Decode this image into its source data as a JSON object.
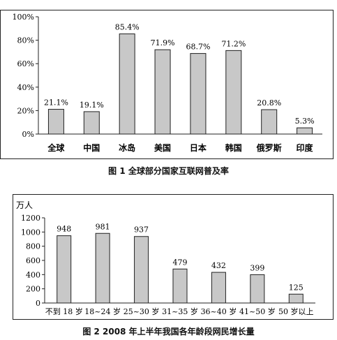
{
  "charts": [
    {
      "caption": "图 1  全球部分国家互联网普及率",
      "chart_data": {
        "type": "bar",
        "categories": [
          "全球",
          "中国",
          "冰岛",
          "美国",
          "日本",
          "韩国",
          "俄罗斯",
          "印度"
        ],
        "values": [
          21.1,
          19.1,
          85.4,
          71.9,
          68.7,
          71.2,
          20.8,
          5.3
        ],
        "value_labels": [
          "21.1%",
          "19.1%",
          "85.4%",
          "71.9%",
          "68.7%",
          "71.2%",
          "20.8%",
          "5.3%"
        ],
        "y_ticks": [
          "0%",
          "20%",
          "40%",
          "60%",
          "80%",
          "100%"
        ],
        "ylim": [
          0,
          100
        ],
        "ylabel": "",
        "bar_color": "#c8c8c8"
      }
    },
    {
      "caption": "图 2  2008 年上半年我国各年龄段网民增长量",
      "chart_data": {
        "type": "bar",
        "categories": [
          "不到 18 岁",
          "18~24 岁",
          "25~30 岁",
          "31~35 岁",
          "36~40 岁",
          "41~50 岁",
          "50 岁以上"
        ],
        "values": [
          948,
          981,
          937,
          479,
          432,
          399,
          125
        ],
        "value_labels": [
          "948",
          "981",
          "937",
          "479",
          "432",
          "399",
          "125"
        ],
        "y_ticks": [
          "0",
          "200",
          "400",
          "600",
          "800",
          "1000",
          "1200"
        ],
        "ylim": [
          0,
          1200
        ],
        "ylabel": "万人",
        "bar_color": "#c8c8c8"
      }
    }
  ]
}
